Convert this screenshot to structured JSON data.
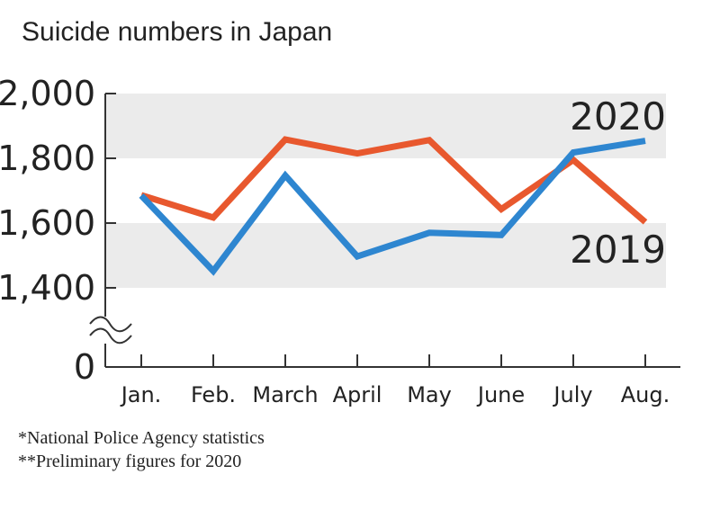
{
  "chart_data": {
    "type": "line",
    "title": "Suicide numbers in Japan",
    "categories": [
      "Jan.",
      "Feb.",
      "March",
      "April",
      "May",
      "June",
      "July",
      "Aug."
    ],
    "y_ticks": [
      0,
      1400,
      1600,
      1800,
      2000
    ],
    "y_tick_labels": [
      "0",
      "1,400",
      "1,600",
      "1,800",
      "2,000"
    ],
    "ylim": [
      1400,
      2000
    ],
    "y_axis_break": true,
    "series": [
      {
        "name": "2019",
        "color": "#e8582e",
        "values": [
          1686,
          1617,
          1858,
          1815,
          1856,
          1643,
          1795,
          1603
        ]
      },
      {
        "name": "2020",
        "color": "#2e86d0",
        "values": [
          1685,
          1452,
          1747,
          1497,
          1570,
          1563,
          1818,
          1854
        ]
      }
    ],
    "grid": "alternating horizontal bands",
    "notes": [
      "*National Police Agency statistics",
      "**Preliminary figures for 2020"
    ]
  }
}
